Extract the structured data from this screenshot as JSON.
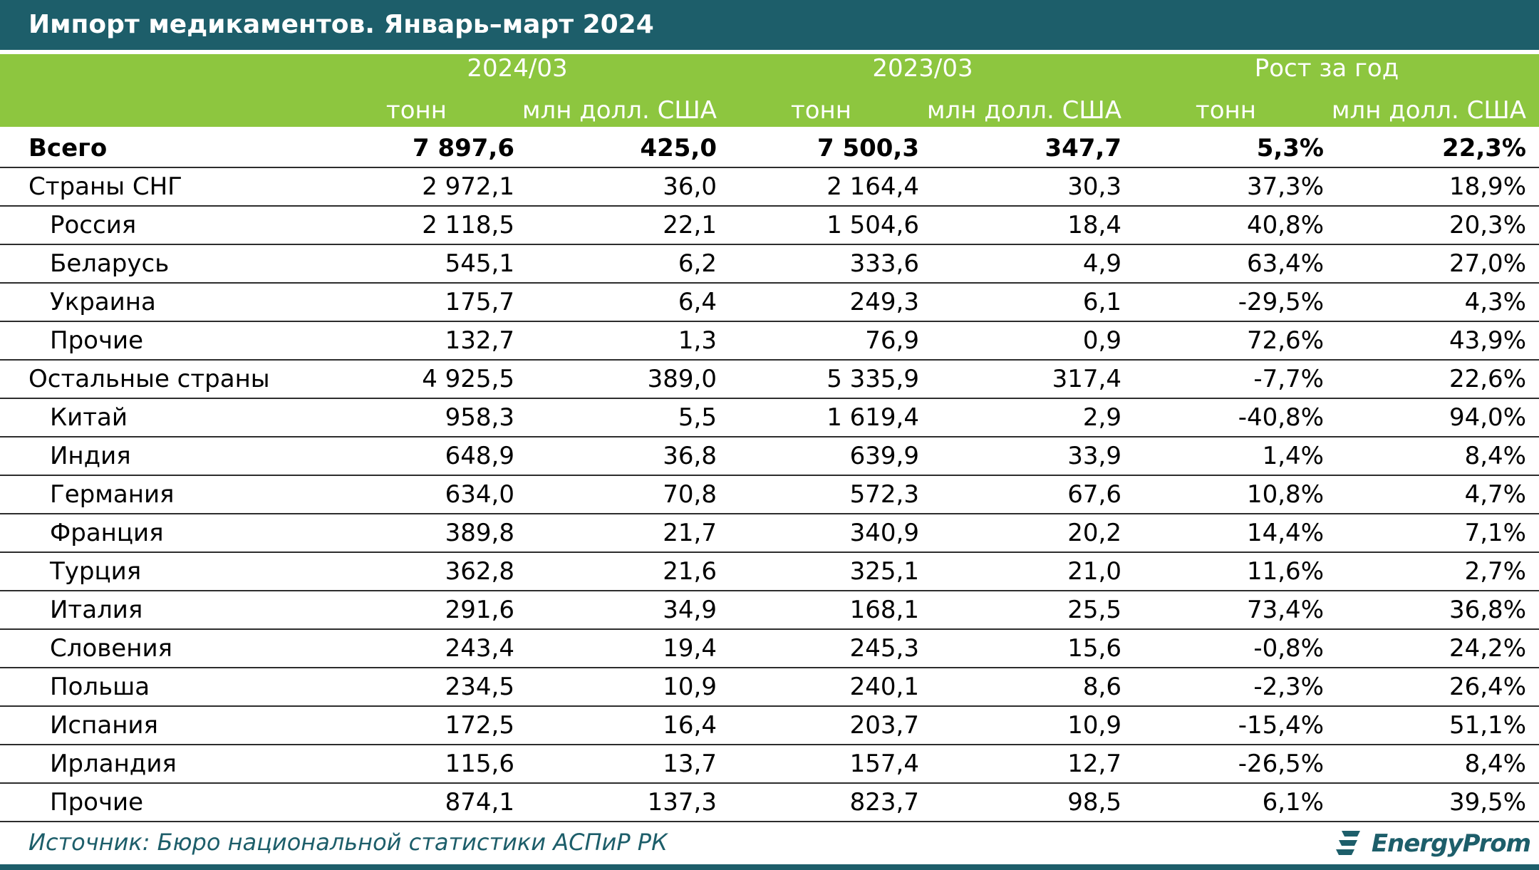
{
  "title": "Импорт медикаментов. Январь–март 2024",
  "chart_data": {
    "type": "table",
    "title": "Импорт медикаментов. Январь–март 2024",
    "column_groups": [
      "2024/03",
      "2023/03",
      "Рост за год"
    ],
    "column_subheaders": [
      "тонн",
      "млн долл. США",
      "тонн",
      "млн долл. США",
      "тонн",
      "млн долл. США"
    ],
    "rows": [
      {
        "label": "Всего",
        "values": [
          "7 897,6",
          "425,0",
          "7 500,3",
          "347,7",
          "5,3%",
          "22,3%"
        ]
      },
      {
        "label": "Страны СНГ",
        "values": [
          "2 972,1",
          "36,0",
          "2 164,4",
          "30,3",
          "37,3%",
          "18,9%"
        ]
      },
      {
        "label": "Россия",
        "values": [
          "2 118,5",
          "22,1",
          "1 504,6",
          "18,4",
          "40,8%",
          "20,3%"
        ]
      },
      {
        "label": "Беларусь",
        "values": [
          "545,1",
          "6,2",
          "333,6",
          "4,9",
          "63,4%",
          "27,0%"
        ]
      },
      {
        "label": "Украина",
        "values": [
          "175,7",
          "6,4",
          "249,3",
          "6,1",
          "-29,5%",
          "4,3%"
        ]
      },
      {
        "label": "Прочие",
        "values": [
          "132,7",
          "1,3",
          "76,9",
          "0,9",
          "72,6%",
          "43,9%"
        ]
      },
      {
        "label": "Остальные страны",
        "values": [
          "4 925,5",
          "389,0",
          "5 335,9",
          "317,4",
          "-7,7%",
          "22,6%"
        ]
      },
      {
        "label": "Китай",
        "values": [
          "958,3",
          "5,5",
          "1 619,4",
          "2,9",
          "-40,8%",
          "94,0%"
        ]
      },
      {
        "label": "Индия",
        "values": [
          "648,9",
          "36,8",
          "639,9",
          "33,9",
          "1,4%",
          "8,4%"
        ]
      },
      {
        "label": "Германия",
        "values": [
          "634,0",
          "70,8",
          "572,3",
          "67,6",
          "10,8%",
          "4,7%"
        ]
      },
      {
        "label": "Франция",
        "values": [
          "389,8",
          "21,7",
          "340,9",
          "20,2",
          "14,4%",
          "7,1%"
        ]
      },
      {
        "label": "Турция",
        "values": [
          "362,8",
          "21,6",
          "325,1",
          "21,0",
          "11,6%",
          "2,7%"
        ]
      },
      {
        "label": "Италия",
        "values": [
          "291,6",
          "34,9",
          "168,1",
          "25,5",
          "73,4%",
          "36,8%"
        ]
      },
      {
        "label": "Словения",
        "values": [
          "243,4",
          "19,4",
          "245,3",
          "15,6",
          "-0,8%",
          "24,2%"
        ]
      },
      {
        "label": "Польша",
        "values": [
          "234,5",
          "10,9",
          "240,1",
          "8,6",
          "-2,3%",
          "26,4%"
        ]
      },
      {
        "label": "Испания",
        "values": [
          "172,5",
          "16,4",
          "203,7",
          "10,9",
          "-15,4%",
          "51,1%"
        ]
      },
      {
        "label": "Ирландия",
        "values": [
          "115,6",
          "13,7",
          "157,4",
          "12,7",
          "-26,5%",
          "8,4%"
        ]
      },
      {
        "label": "Прочие",
        "values": [
          "874,1",
          "137,3",
          "823,7",
          "98,5",
          "6,1%",
          "39,5%"
        ]
      }
    ]
  },
  "source": "Источник: Бюро национальной статистики АСПиР РК",
  "logo": {
    "text": "EnergyProm",
    "icon": "energyprom-logo-icon"
  },
  "colors": {
    "title_bar": "#1d5e6a",
    "header_band": "#8dc63f",
    "header_text": "#ffffff",
    "source_text": "#1d5e6a"
  }
}
